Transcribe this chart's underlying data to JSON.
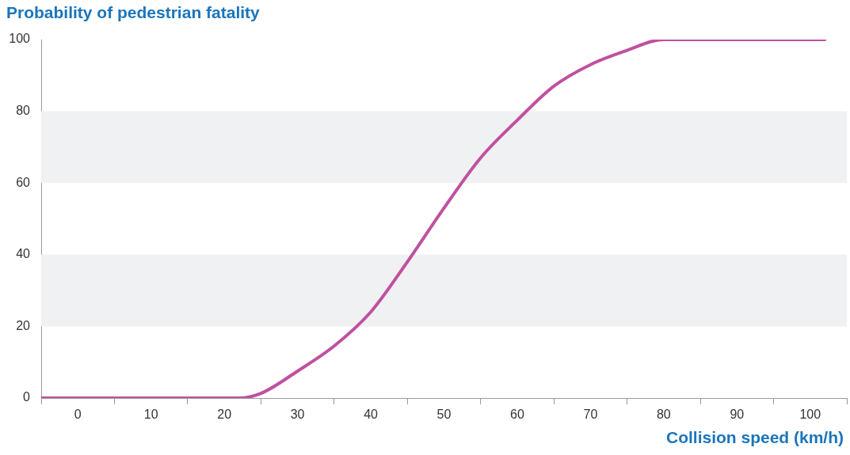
{
  "chart_data": {
    "type": "line",
    "ylabel": "Probability of pedestrian fatality",
    "xlabel": "Collision speed (km/h)",
    "x": [
      -5,
      0,
      5,
      10,
      15,
      20,
      22,
      25,
      30,
      35,
      40,
      45,
      50,
      55,
      60,
      65,
      70,
      75,
      80,
      85,
      90,
      95,
      100,
      102
    ],
    "series": [
      {
        "color": "#c0519f",
        "values": [
          0,
          0,
          0,
          0,
          0,
          0,
          0,
          1.3,
          7.5,
          14.5,
          24,
          38,
          53,
          67,
          77.5,
          87,
          93,
          97,
          100,
          100,
          100,
          100,
          100,
          100
        ]
      }
    ],
    "xlim": [
      -5,
      105
    ],
    "xticks": [
      {
        "value": -5,
        "label": null
      },
      0,
      {
        "value": 5,
        "label": null
      },
      10,
      {
        "value": 15,
        "label": null
      },
      20,
      {
        "value": 25,
        "label": null
      },
      30,
      {
        "value": 35,
        "label": null
      },
      40,
      {
        "value": 45,
        "label": null
      },
      50,
      {
        "value": 55,
        "label": null
      },
      60,
      {
        "value": 65,
        "label": null
      },
      70,
      {
        "value": 75,
        "label": null
      },
      80,
      {
        "value": 85,
        "label": null
      },
      90,
      {
        "value": 95,
        "label": null
      },
      100,
      {
        "value": 105,
        "label": null
      }
    ],
    "ylim": [
      0,
      100
    ],
    "yticks": [
      0,
      20,
      40,
      60,
      80,
      100
    ],
    "bands": [
      {
        "axis": "y",
        "from": 20,
        "to": 40,
        "color": "#f0f1f3"
      },
      {
        "axis": "y",
        "from": 60,
        "to": 80,
        "color": "#f0f1f3"
      }
    ],
    "grid": false,
    "legend": false,
    "marker": "none",
    "line_style": "solid"
  }
}
